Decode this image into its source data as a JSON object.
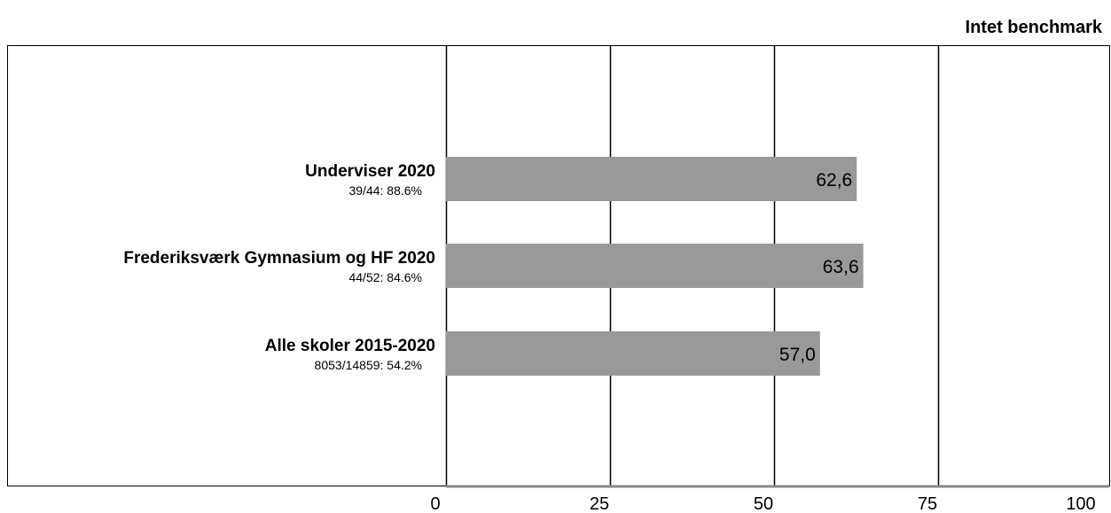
{
  "chart_data": {
    "type": "bar",
    "orientation": "horizontal",
    "title": "Intet benchmark",
    "categories": [
      "Underviser 2020",
      "Frederiksværk Gymnasium og HF 2020",
      "Alle skoler 2015-2020"
    ],
    "sublabels": [
      "39/44: 88.6%",
      "44/52: 84.6%",
      "8053/14859: 54.2%"
    ],
    "values": [
      62.6,
      63.6,
      57.0
    ],
    "value_labels": [
      "62,6",
      "63,6",
      "57,0"
    ],
    "xlim": [
      0,
      100
    ],
    "xticks": [
      0,
      25,
      50,
      75,
      100
    ],
    "xtick_labels": [
      "0",
      "25",
      "50",
      "75",
      "100"
    ],
    "grid": "vertical",
    "bar_color": "#999999",
    "axis_color": "#888888"
  }
}
